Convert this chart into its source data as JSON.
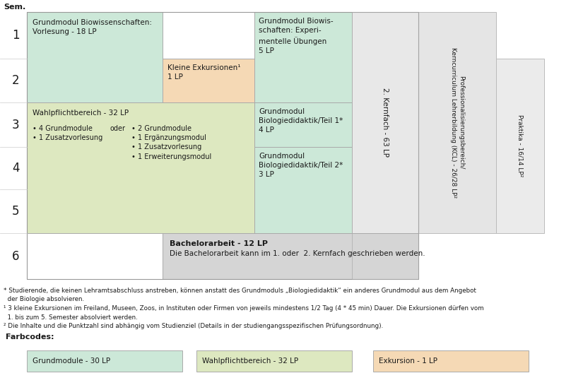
{
  "colors": {
    "grundmodul": "#cce8d8",
    "wahlpflicht": "#dde8c0",
    "exkursion": "#f5d9b5",
    "bachelor": "#d5d5d5",
    "kernfach2": "#e8e8e8",
    "professionalisierung": "#e5e5e5",
    "praktika": "#ebebeb",
    "background": "#ffffff"
  },
  "footnote_text": "* Studierende, die keinen Lehramtsabschluss anstreben, können anstatt des Grundmoduls „Biologiedidaktik“ ein anderes Grundmodul aus dem Angebot\n  der Biologie absolvieren.\n¹ 3 kleine Exkursionen im Freiland, Museen, Zoos, in Instituten oder Firmen von jeweils mindestens 1/2 Tag (4 * 45 min) Dauer. Die Exkursionen dürfen vom\n  1. bis zum 5. Semester absolviert werden.\n² Die Inhalte und die Punktzahl sind abhängig vom Studienziel (Details in der studiengangsspezifischen Prüfungsordnung).",
  "farbcodes_label": "Farbcodes:",
  "farbcodes": [
    {
      "label": "Grundmodule - 30 LP",
      "color": "#cce8d8"
    },
    {
      "label": "Wahlpflichtbereich - 32 LP",
      "color": "#dde8c0"
    },
    {
      "label": "Exkursion - 1 LP",
      "color": "#f5d9b5"
    }
  ],
  "sem_label": "Sem.",
  "block1_text": "Grundmodul Biowissenschaften:\nVorlesung - 18 LP",
  "block2_text": "Kleine Exkursionen¹\n1 LP",
  "block3_text": "Grundmodul Biowis-\nschaften: Experi-\nmentelle Übungen\n5 LP",
  "block4_title": "Wahlpflichtbereich - 32 LP",
  "block4_left": "• 4 Grundmodule\n• 1 Zusatzvorlesung",
  "block4_oder": "oder",
  "block4_right": "• 2 Grundmodule\n• 1 Ergänzungsmodul\n• 1 Zusatzvorlesung\n• 1 Erweiterungsmodul",
  "block5_text": "Grundmodul\nBiologiedidaktik/Teil 1*\n4 LP",
  "block6_text": "Grundmodul\nBiologiedidaktik/Teil 2*\n3 LP",
  "block7_text": "2. Kernfach - 63 LP",
  "block8_text": "Professionalisierungsbereich/\nKerncurriculum Lehrerbildung (KCL) - 26/28 LP²",
  "block9_text": "Praktika - 16/14 LP²",
  "block10_title": "Bachelorarbeit - 12 LP",
  "block10_sub": "Die Bachelorarbeit kann im 1. oder  2. Kernfach geschrieben werden."
}
